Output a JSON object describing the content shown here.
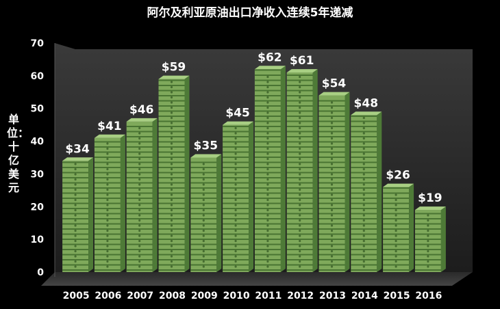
{
  "chart_data": {
    "type": "bar",
    "title": "阿尔及利亚原油出口净收入连续5年递减",
    "ylabel": "单位：十亿美元",
    "xlabel": "",
    "categories": [
      "2005",
      "2006",
      "2007",
      "2008",
      "2009",
      "2010",
      "2011",
      "2012",
      "2013",
      "2014",
      "2015",
      "2016"
    ],
    "values": [
      34,
      41,
      46,
      59,
      35,
      45,
      62,
      61,
      54,
      48,
      26,
      19
    ],
    "data_labels": [
      "$34",
      "$41",
      "$46",
      "$59",
      "$35",
      "$45",
      "$62",
      "$61",
      "$54",
      "$48",
      "$26",
      "$19"
    ],
    "ylim": [
      0,
      70
    ],
    "yticks": [
      0,
      10,
      20,
      30,
      40,
      50,
      60,
      70
    ],
    "grid": false,
    "legend": "none",
    "colors": {
      "background": "#000000",
      "wall_back": "#2e2e2e",
      "bar_face": "#7fa95b",
      "bar_band": "#3f6b2c",
      "bar_top": "#a8cf83",
      "text": "#ffffff"
    }
  }
}
